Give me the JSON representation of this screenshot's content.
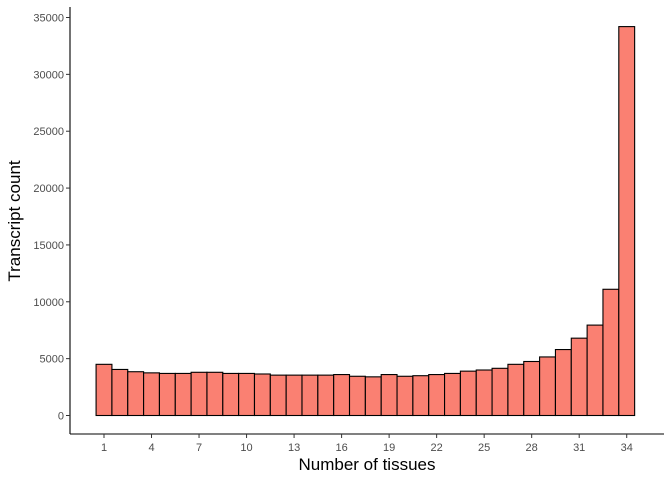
{
  "chart_data": {
    "type": "bar",
    "xlabel": "Number of tissues",
    "ylabel": "Transcript count",
    "x": [
      1,
      2,
      3,
      4,
      5,
      6,
      7,
      8,
      9,
      10,
      11,
      12,
      13,
      14,
      15,
      16,
      17,
      18,
      19,
      20,
      21,
      22,
      23,
      24,
      25,
      26,
      27,
      28,
      29,
      30,
      31,
      32,
      33,
      34
    ],
    "values": [
      4500,
      4050,
      3850,
      3750,
      3700,
      3700,
      3800,
      3800,
      3700,
      3700,
      3650,
      3550,
      3550,
      3550,
      3550,
      3600,
      3450,
      3400,
      3600,
      3450,
      3500,
      3600,
      3700,
      3900,
      4000,
      4150,
      4500,
      4750,
      5150,
      5800,
      6800,
      7950,
      11100,
      34200
    ],
    "x_ticks": [
      1,
      4,
      7,
      10,
      13,
      16,
      19,
      22,
      25,
      28,
      31,
      34
    ],
    "y_ticks": [
      0,
      5000,
      10000,
      15000,
      20000,
      25000,
      30000,
      35000
    ],
    "ylim": [
      0,
      35000
    ],
    "grid": false,
    "colors": {
      "fill": "#FA8072",
      "stroke": "#000000"
    }
  }
}
